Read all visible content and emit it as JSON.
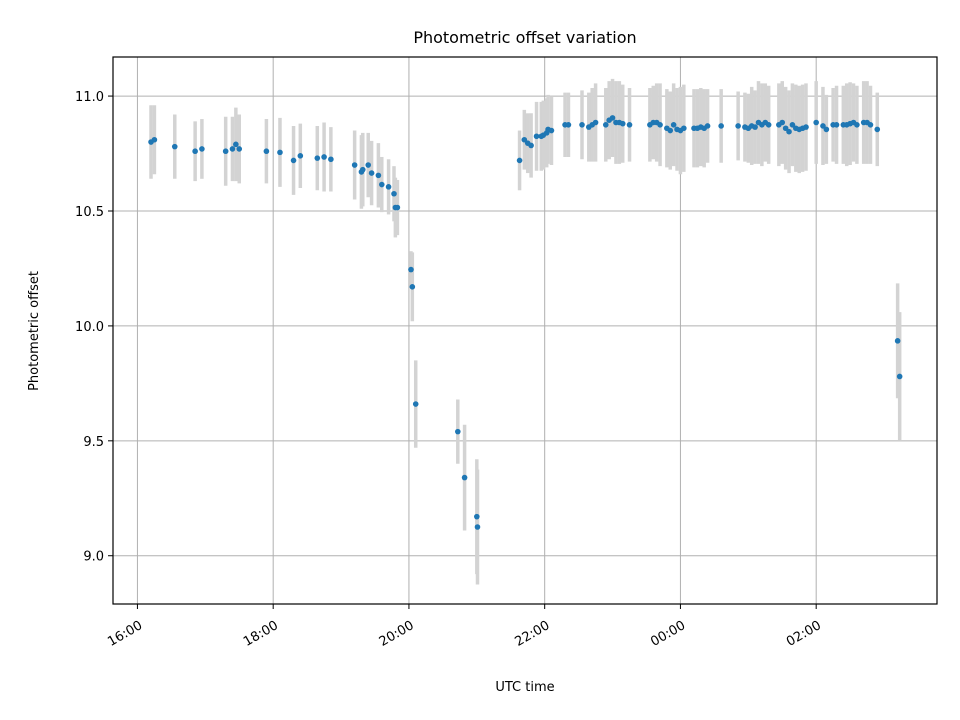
{
  "chart_data": {
    "type": "scatter",
    "title": "Photometric offset variation",
    "xlabel": "UTC time",
    "ylabel": "Photometric offset",
    "x_tick_labels": [
      "16:00",
      "18:00",
      "20:00",
      "22:00",
      "00:00",
      "02:00"
    ],
    "x_tick_hours": [
      16,
      18,
      20,
      22,
      24,
      26
    ],
    "xlim_hours": [
      15.64,
      27.78
    ],
    "y_tick_labels": [
      "9.0",
      "9.5",
      "10.0",
      "10.5",
      "11.0"
    ],
    "y_ticks": [
      9.0,
      9.5,
      10.0,
      10.5,
      11.0
    ],
    "ylim": [
      8.79,
      11.17
    ],
    "grid": true,
    "colors": {
      "marker": "#1f77b4",
      "errorbar": "#d3d3d3",
      "grid": "#b0b0b0"
    },
    "series": [
      {
        "x_hours": [
          16.2,
          16.25,
          16.55,
          16.85,
          16.95,
          17.3,
          17.4,
          17.45,
          17.5,
          17.9,
          18.1,
          18.3,
          18.4,
          18.65,
          18.75,
          18.85,
          19.2,
          19.3,
          19.32,
          19.4,
          19.45,
          19.55,
          19.6,
          19.7,
          19.78,
          19.8,
          19.83,
          20.03,
          20.05,
          20.1,
          20.72,
          20.82,
          21.0,
          21.01,
          21.63,
          21.7,
          21.75,
          21.8,
          21.88,
          21.95,
          21.98,
          22.03,
          22.05,
          22.1,
          22.3,
          22.35,
          22.55,
          22.65,
          22.7,
          22.75,
          22.9,
          22.95,
          23.0,
          23.05,
          23.1,
          23.15,
          23.25,
          23.55,
          23.6,
          23.65,
          23.7,
          23.8,
          23.85,
          23.9,
          23.95,
          24.0,
          24.05,
          24.2,
          24.25,
          24.3,
          24.35,
          24.4,
          24.6,
          24.85,
          24.95,
          25.0,
          25.05,
          25.1,
          25.15,
          25.2,
          25.25,
          25.3,
          25.45,
          25.5,
          25.55,
          25.6,
          25.65,
          25.7,
          25.75,
          25.8,
          25.85,
          26.0,
          26.1,
          26.15,
          26.25,
          26.3,
          26.4,
          26.45,
          26.5,
          26.55,
          26.6,
          26.7,
          26.75,
          26.8,
          26.9,
          27.2,
          27.23
        ],
        "y": [
          10.8,
          10.81,
          10.78,
          10.76,
          10.77,
          10.76,
          10.77,
          10.79,
          10.77,
          10.76,
          10.755,
          10.72,
          10.74,
          10.73,
          10.735,
          10.725,
          10.7,
          10.67,
          10.68,
          10.7,
          10.665,
          10.655,
          10.615,
          10.605,
          10.575,
          10.515,
          10.515,
          10.245,
          10.17,
          9.66,
          9.54,
          9.34,
          9.17,
          9.125,
          10.72,
          10.81,
          10.795,
          10.785,
          10.825,
          10.825,
          10.83,
          10.84,
          10.855,
          10.85,
          10.875,
          10.875,
          10.875,
          10.865,
          10.875,
          10.885,
          10.875,
          10.895,
          10.905,
          10.885,
          10.885,
          10.88,
          10.875,
          10.875,
          10.885,
          10.885,
          10.875,
          10.86,
          10.85,
          10.875,
          10.855,
          10.85,
          10.86,
          10.86,
          10.86,
          10.865,
          10.86,
          10.87,
          10.87,
          10.87,
          10.865,
          10.86,
          10.87,
          10.865,
          10.885,
          10.875,
          10.885,
          10.875,
          10.875,
          10.885,
          10.86,
          10.845,
          10.875,
          10.86,
          10.855,
          10.86,
          10.865,
          10.885,
          10.87,
          10.855,
          10.875,
          10.875,
          10.875,
          10.875,
          10.88,
          10.885,
          10.875,
          10.885,
          10.885,
          10.875,
          10.855,
          9.935,
          9.78
        ],
        "err": [
          0.16,
          0.15,
          0.14,
          0.13,
          0.13,
          0.15,
          0.14,
          0.16,
          0.15,
          0.14,
          0.15,
          0.15,
          0.14,
          0.14,
          0.15,
          0.14,
          0.15,
          0.16,
          0.16,
          0.14,
          0.14,
          0.14,
          0.12,
          0.12,
          0.12,
          0.13,
          0.12,
          0.08,
          0.15,
          0.19,
          0.14,
          0.23,
          0.25,
          0.25,
          0.13,
          0.13,
          0.13,
          0.14,
          0.15,
          0.15,
          0.15,
          0.15,
          0.15,
          0.15,
          0.14,
          0.14,
          0.15,
          0.15,
          0.16,
          0.17,
          0.16,
          0.17,
          0.17,
          0.18,
          0.18,
          0.17,
          0.16,
          0.16,
          0.16,
          0.17,
          0.18,
          0.17,
          0.17,
          0.18,
          0.18,
          0.19,
          0.19,
          0.17,
          0.17,
          0.17,
          0.17,
          0.16,
          0.16,
          0.15,
          0.15,
          0.15,
          0.17,
          0.16,
          0.18,
          0.18,
          0.17,
          0.17,
          0.18,
          0.18,
          0.18,
          0.18,
          0.18,
          0.19,
          0.19,
          0.19,
          0.19,
          0.18,
          0.17,
          0.15,
          0.16,
          0.17,
          0.17,
          0.18,
          0.18,
          0.17,
          0.17,
          0.18,
          0.18,
          0.17,
          0.16,
          0.25,
          0.28
        ]
      }
    ]
  }
}
